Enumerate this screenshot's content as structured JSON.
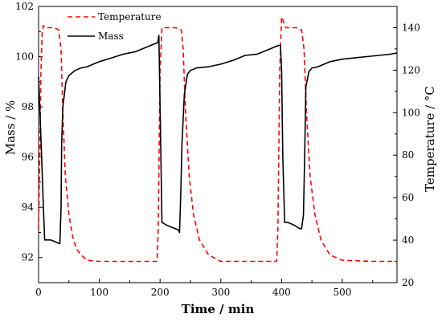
{
  "chart_data": {
    "type": "line",
    "title": "",
    "xlabel": "Time / min",
    "ylabel_left": "Mass / %",
    "ylabel_right": "Temperature / °C",
    "xlim": [
      0,
      590
    ],
    "ylim_left": [
      91.0,
      102.0
    ],
    "ylim_right": [
      20,
      150
    ],
    "x_ticks": [
      0,
      100,
      200,
      300,
      400,
      500
    ],
    "y_left_ticks": [
      92,
      94,
      96,
      98,
      100,
      102
    ],
    "y_right_ticks": [
      20,
      40,
      60,
      80,
      100,
      120,
      140
    ],
    "grid": false,
    "legend_position": "top-left",
    "series": [
      {
        "name": "Temperature",
        "axis": "right",
        "color": "#ff0000",
        "style": "dashed",
        "x": [
          0,
          2,
          4,
          6,
          8,
          12,
          18,
          25,
          33,
          37,
          40,
          44,
          50,
          56,
          62,
          70,
          80,
          100,
          150,
          195,
          197,
          200,
          203,
          207,
          215,
          225,
          235,
          238,
          242,
          248,
          255,
          265,
          280,
          300,
          350,
          392,
          394,
          397,
          400,
          403,
          407,
          415,
          425,
          433,
          437,
          441,
          447,
          455,
          465,
          480,
          500,
          550,
          590
        ],
        "y": [
          45,
          80,
          120,
          138,
          141,
          140,
          140,
          140,
          139,
          130,
          100,
          70,
          52,
          42,
          36,
          33,
          30.5,
          30,
          30,
          30,
          45,
          120,
          140,
          140,
          140,
          140,
          139,
          130,
          100,
          70,
          52,
          40,
          33,
          30,
          30,
          30,
          45,
          120,
          145,
          143,
          140,
          140,
          140,
          139,
          130,
          100,
          70,
          52,
          40,
          33,
          30.5,
          30,
          30
        ]
      },
      {
        "name": "Mass",
        "axis": "left",
        "color": "#000000",
        "style": "solid",
        "x": [
          0,
          2,
          5,
          8,
          10,
          15,
          20,
          25,
          30,
          35,
          37,
          38,
          40,
          45,
          50,
          60,
          70,
          80,
          90,
          100,
          120,
          140,
          160,
          180,
          190,
          196,
          198,
          200,
          203,
          210,
          220,
          230,
          232,
          234,
          236,
          240,
          245,
          250,
          260,
          280,
          300,
          320,
          340,
          360,
          380,
          395,
          398,
          400,
          402,
          405,
          410,
          420,
          430,
          433,
          436,
          438,
          440,
          445,
          450,
          460,
          470,
          480,
          500,
          520,
          540,
          560,
          580,
          590
        ],
        "y": [
          99.2,
          98.0,
          96.0,
          94.0,
          92.7,
          92.7,
          92.7,
          92.65,
          92.6,
          92.55,
          94.0,
          96.5,
          98.0,
          99.0,
          99.25,
          99.45,
          99.55,
          99.6,
          99.7,
          99.8,
          99.95,
          100.1,
          100.2,
          100.4,
          100.5,
          100.55,
          100.85,
          98.0,
          93.4,
          93.3,
          93.2,
          93.1,
          93.0,
          94.5,
          96.5,
          98.5,
          99.3,
          99.45,
          99.55,
          99.6,
          99.7,
          99.85,
          100.05,
          100.1,
          100.3,
          100.45,
          100.45,
          99.5,
          96.0,
          93.4,
          93.4,
          93.3,
          93.15,
          93.15,
          93.7,
          96.0,
          98.8,
          99.4,
          99.55,
          99.6,
          99.7,
          99.8,
          99.9,
          99.95,
          100.0,
          100.05,
          100.1,
          100.15
        ]
      }
    ]
  }
}
